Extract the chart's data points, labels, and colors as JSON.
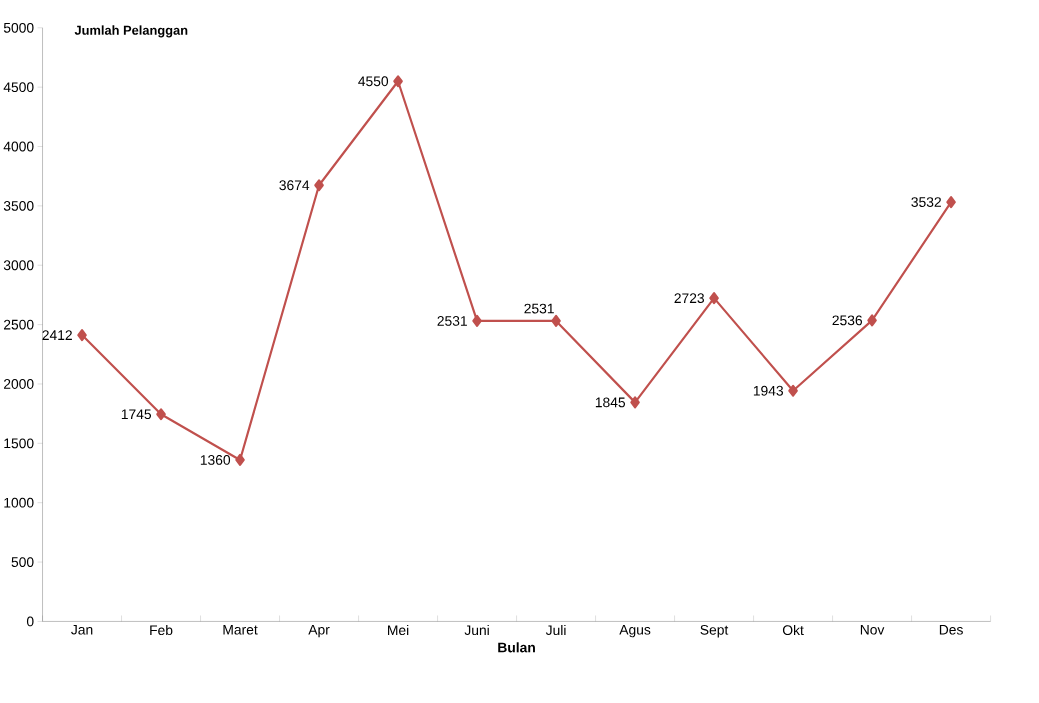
{
  "chart_data": {
    "type": "line",
    "ylabel": "Jumlah Pelanggan",
    "xlabel": "Bulan",
    "categories": [
      "Jan",
      "Feb",
      "Maret",
      "Apr",
      "Mei",
      "Juni",
      "Juli",
      "Agus",
      "Sept",
      "Okt",
      "Nov",
      "Des"
    ],
    "values": [
      2412,
      1745,
      1360,
      3674,
      4550,
      2531,
      2531,
      1845,
      2723,
      1943,
      2536,
      3532
    ],
    "color": "#c0504d",
    "marker": "diamond",
    "line_style": "solid",
    "data_labels": true,
    "ylim": [
      0,
      5000
    ],
    "yticks": [
      0,
      500,
      1000,
      1500,
      2000,
      2500,
      3000,
      3500,
      4000,
      4500,
      5000
    ]
  }
}
